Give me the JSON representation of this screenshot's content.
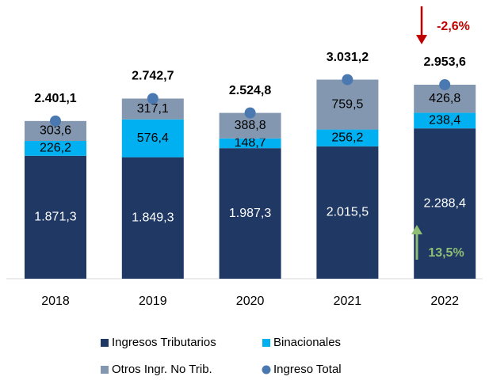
{
  "chart_data": {
    "type": "bar",
    "stacked": true,
    "categories": [
      "2018",
      "2019",
      "2020",
      "2021",
      "2022"
    ],
    "series": [
      {
        "name": "Ingresos Tributarios",
        "color": "#1f3864",
        "values": [
          1871.3,
          1849.3,
          1987.3,
          2015.5,
          2288.4
        ],
        "value_labels": [
          "1.871,3",
          "1.849,3",
          "1.987,3",
          "2.015,5",
          "2.288,4"
        ]
      },
      {
        "name": "Binacionales",
        "color": "#00b0f0",
        "values": [
          226.2,
          576.4,
          148.7,
          256.2,
          238.4
        ],
        "value_labels": [
          "226,2",
          "576,4",
          "148,7",
          "256,2",
          "238,4"
        ]
      },
      {
        "name": "Otros Ingr. No Trib.",
        "color": "#8497b0",
        "values": [
          303.6,
          317.1,
          388.8,
          759.5,
          426.8
        ],
        "value_labels": [
          "303,6",
          "317,1",
          "388,8",
          "759,5",
          "426,8"
        ]
      },
      {
        "name": "Ingreso Total",
        "color": "#4a78b0",
        "type": "scatter",
        "values": [
          2401.1,
          2742.7,
          2524.8,
          3031.2,
          2953.6
        ],
        "value_labels": [
          "2.401,1",
          "2.742,7",
          "2.524,8",
          "3.031,2",
          "2.953,6"
        ]
      }
    ],
    "annotations": [
      {
        "text": "-2,6%",
        "color": "#c00000"
      },
      {
        "text": "13,5%",
        "color": "#8fbf74"
      }
    ]
  }
}
